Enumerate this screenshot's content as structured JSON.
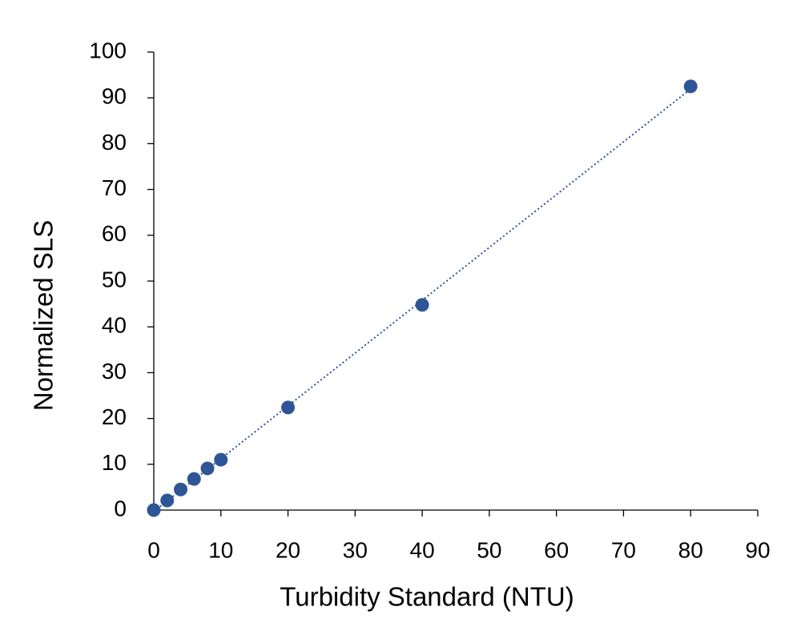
{
  "chart_data": {
    "type": "scatter",
    "x_label": "Turbidity Standard (NTU)",
    "y_label": "Normalized SLS",
    "series": [
      {
        "color": "#2f5597",
        "x": [
          0,
          2,
          4,
          6,
          8,
          10,
          20,
          40,
          80
        ],
        "values": [
          0,
          2.1,
          4.5,
          6.8,
          9.1,
          11.0,
          22.4,
          44.8,
          92.5
        ]
      }
    ],
    "trendline": "linear",
    "xlim": [
      0,
      90
    ],
    "xticks": [
      0,
      10,
      20,
      30,
      40,
      50,
      60,
      70,
      80,
      90
    ],
    "ylim": [
      0,
      100
    ],
    "yticks": [
      0,
      10,
      20,
      30,
      40,
      50,
      60,
      70,
      80,
      90,
      100
    ],
    "grid": false
  }
}
